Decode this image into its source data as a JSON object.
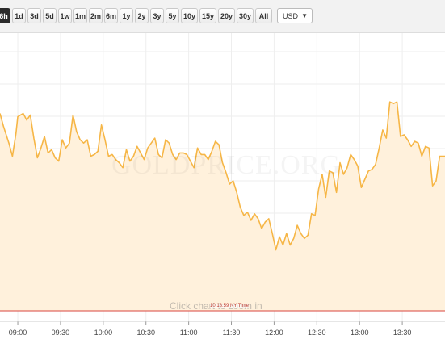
{
  "toolbar": {
    "ranges": [
      {
        "label": "6h",
        "active": true
      },
      {
        "label": "1d"
      },
      {
        "label": "3d"
      },
      {
        "label": "5d"
      },
      {
        "label": "1w"
      },
      {
        "label": "1m"
      },
      {
        "label": "2m"
      },
      {
        "label": "6m"
      },
      {
        "label": "1y"
      },
      {
        "label": "2y"
      },
      {
        "label": "3y"
      },
      {
        "label": "5y"
      },
      {
        "label": "10y"
      },
      {
        "label": "15y"
      },
      {
        "label": "20y"
      },
      {
        "label": "30y"
      },
      {
        "label": "All"
      }
    ],
    "currency": "USD"
  },
  "chart": {
    "watermark": "GOLDPRICE.ORG",
    "hint": "Click chart to zoom in",
    "time_tag": "10:18:59 NY Time",
    "colors": {
      "line": "#f6b646",
      "fill": "#fff1dc",
      "grid": "#eeeeee",
      "marker": "#d9463f"
    }
  },
  "chart_data": {
    "type": "area",
    "x_ticks": [
      "09:00",
      "09:30",
      "10:00",
      "10:30",
      "11:00",
      "11:30",
      "12:00",
      "12:30",
      "13:00",
      "13:30"
    ],
    "points": [
      [
        -5,
        0
      ],
      [
        -4,
        -0.8
      ],
      [
        -2.5,
        -1.8
      ],
      [
        -1.5,
        -2.6
      ],
      [
        -0.5,
        -1.2
      ],
      [
        0,
        -0.2
      ],
      [
        1.5,
        0
      ],
      [
        2.5,
        -0.4
      ],
      [
        3.5,
        -0.1
      ],
      [
        4.5,
        -1.5
      ],
      [
        5.5,
        -2.7
      ],
      [
        6.5,
        -2.1
      ],
      [
        7.5,
        -1.4
      ],
      [
        8.5,
        -2.4
      ],
      [
        9.5,
        -2.2
      ],
      [
        10.5,
        -2.7
      ],
      [
        11.5,
        -2.9
      ],
      [
        12.5,
        -1.6
      ],
      [
        13.5,
        -2.1
      ],
      [
        14.5,
        -1.8
      ],
      [
        15.5,
        -0.1
      ],
      [
        16.5,
        -1.1
      ],
      [
        17.5,
        -1.6
      ],
      [
        18.5,
        -1.8
      ],
      [
        19.5,
        -1.6
      ],
      [
        20.5,
        -2.6
      ],
      [
        21.5,
        -2.5
      ],
      [
        22.5,
        -2.3
      ],
      [
        23.5,
        -0.7
      ],
      [
        24.5,
        -1.6
      ],
      [
        25.5,
        -2.6
      ],
      [
        26.5,
        -2.5
      ],
      [
        27.5,
        -2.8
      ],
      [
        28.5,
        -3.0
      ],
      [
        29.5,
        -3.3
      ],
      [
        30.5,
        -2.2
      ],
      [
        31.5,
        -2.9
      ],
      [
        32.5,
        -2.6
      ],
      [
        33.5,
        -2.0
      ],
      [
        34.5,
        -2.4
      ],
      [
        35.5,
        -2.8
      ],
      [
        36.5,
        -2.1
      ],
      [
        37.5,
        -1.8
      ],
      [
        38.5,
        -1.5
      ],
      [
        39.5,
        -2.5
      ],
      [
        40.5,
        -2.7
      ],
      [
        41.5,
        -1.6
      ],
      [
        42.5,
        -1.8
      ],
      [
        43.5,
        -2.5
      ],
      [
        44.5,
        -2.8
      ],
      [
        45.5,
        -2.4
      ],
      [
        46.5,
        -2.4
      ],
      [
        47.5,
        -2.5
      ],
      [
        48.5,
        -2.9
      ],
      [
        49.5,
        -3.3
      ],
      [
        50.5,
        -2.1
      ],
      [
        51.5,
        -2.5
      ],
      [
        52.5,
        -2.5
      ],
      [
        53.5,
        -2.8
      ],
      [
        54.5,
        -2.3
      ],
      [
        55.5,
        -1.7
      ],
      [
        56.5,
        -1.9
      ],
      [
        57.5,
        -3.0
      ],
      [
        58.5,
        -3.6
      ],
      [
        59.5,
        -4.3
      ],
      [
        60.5,
        -4.1
      ],
      [
        61.5,
        -4.8
      ],
      [
        62.5,
        -5.7
      ],
      [
        63.5,
        -6.2
      ],
      [
        64.5,
        -6.0
      ],
      [
        65.5,
        -6.5
      ],
      [
        66.5,
        -6.1
      ],
      [
        67.5,
        -6.4
      ],
      [
        68.5,
        -7.0
      ],
      [
        69.5,
        -6.6
      ],
      [
        70.5,
        -6.4
      ],
      [
        71.5,
        -7.3
      ],
      [
        72.5,
        -8.3
      ],
      [
        73.5,
        -7.5
      ],
      [
        74.5,
        -8.0
      ],
      [
        75.5,
        -7.3
      ],
      [
        76.5,
        -8.0
      ],
      [
        77.5,
        -7.6
      ],
      [
        78.5,
        -6.8
      ],
      [
        79.5,
        -7.3
      ],
      [
        80.5,
        -7.6
      ],
      [
        81.5,
        -7.4
      ],
      [
        82.5,
        -6.1
      ],
      [
        83.5,
        -6.2
      ],
      [
        84.5,
        -4.6
      ],
      [
        85.5,
        -3.7
      ],
      [
        86.5,
        -5.1
      ],
      [
        87.5,
        -3.5
      ],
      [
        88.5,
        -3.6
      ],
      [
        89.5,
        -4.8
      ],
      [
        90.5,
        -3.0
      ],
      [
        91.5,
        -3.7
      ],
      [
        92.5,
        -3.3
      ],
      [
        93.5,
        -2.5
      ],
      [
        94.5,
        -2.8
      ],
      [
        95.5,
        -3.2
      ],
      [
        96.5,
        -4.5
      ],
      [
        97.5,
        -4.0
      ],
      [
        98.5,
        -3.5
      ],
      [
        99.5,
        -3.4
      ],
      [
        100.5,
        -3.1
      ],
      [
        101.5,
        -2.1
      ],
      [
        102.5,
        -1.0
      ],
      [
        103.5,
        -1.5
      ],
      [
        104.5,
        0.7
      ],
      [
        105.5,
        0.6
      ],
      [
        106.5,
        0.7
      ],
      [
        107.5,
        -1.4
      ],
      [
        108.5,
        -1.3
      ],
      [
        109.5,
        -1.6
      ],
      [
        110.5,
        -2.0
      ],
      [
        111.5,
        -1.7
      ],
      [
        112.5,
        -1.8
      ],
      [
        113.5,
        -2.6
      ],
      [
        114.5,
        -2.0
      ],
      [
        115.5,
        -2.1
      ],
      [
        116.5,
        -4.4
      ],
      [
        117.5,
        -4.1
      ],
      [
        118.5,
        -2.6
      ],
      [
        120,
        -2.6
      ]
    ],
    "x_range": [
      -5,
      120
    ],
    "y_range": [
      -12,
      4
    ]
  }
}
